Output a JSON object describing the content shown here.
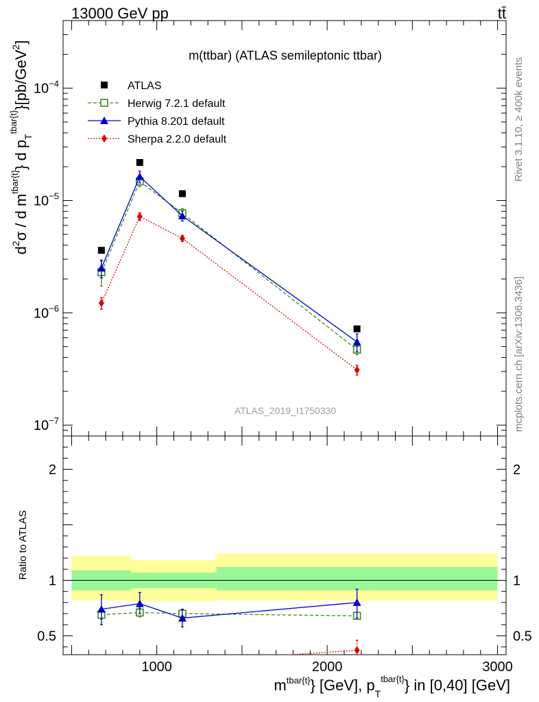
{
  "header": {
    "left": "13000 GeV pp",
    "right": "tt̄"
  },
  "side_labels": {
    "rivet": "Rivet 3.1.10, ≥ 400k events",
    "mcplots": "mcplots.cern.ch [arXiv:1306.3436]"
  },
  "chart_data": [
    {
      "type": "scatter",
      "title": "m(ttbar) (ATLAS semileptonic ttbar)",
      "watermark": "ATLAS_2019_I1750330",
      "ylabel": {
        "parts": [
          "d",
          "2",
          "σ / d m",
          "tbar{t}",
          "} d p",
          "T",
          "tbar{t}",
          "}[pb/GeV",
          "2",
          "]"
        ]
      },
      "y_scale": "log",
      "ylim": [
        8e-08,
        0.0004
      ],
      "xlim": [
        450,
        3050
      ],
      "y_ticks": [
        {
          "value": 1e-07,
          "mantissa": "10",
          "exp": "−7"
        },
        {
          "value": 1e-06,
          "mantissa": "10",
          "exp": "−6"
        },
        {
          "value": 1e-05,
          "mantissa": "10",
          "exp": "−5"
        },
        {
          "value": 0.0001,
          "mantissa": "10",
          "exp": "−4"
        }
      ],
      "legend_position": "top-left",
      "series": [
        {
          "name": "ATLAS",
          "color": "#000000",
          "marker": "square-filled",
          "line": "none",
          "x": [
            675,
            900,
            1150,
            2175
          ],
          "y": [
            3.6e-06,
            2.18e-05,
            1.15e-05,
            7.2e-07
          ]
        },
        {
          "name": "Herwig 7.2.1 default",
          "color": "#3a8a12",
          "marker": "square-open",
          "line": "dashed",
          "x": [
            675,
            900,
            1150,
            2175
          ],
          "y": [
            2.3e-06,
            1.48e-05,
            7.7e-06,
            4.7e-07
          ],
          "yerr": [
            0.25,
            0.1,
            0.1,
            0.1
          ]
        },
        {
          "name": "Pythia 8.201 default",
          "color": "#0000cc",
          "marker": "triangle-filled",
          "line": "solid",
          "x": [
            675,
            900,
            1150,
            2175
          ],
          "y": [
            2.5e-06,
            1.63e-05,
            7.3e-06,
            5.5e-07
          ],
          "yerr": [
            0.18,
            0.12,
            0.1,
            0.18
          ]
        },
        {
          "name": "Sherpa 2.2.0 default",
          "color": "#e00000",
          "marker": "diamond-filled",
          "line": "dotted",
          "x": [
            675,
            900,
            1150,
            2175
          ],
          "y": [
            1.22e-06,
            7.2e-06,
            4.6e-06,
            3.1e-07
          ],
          "yerr": [
            0.12,
            0.08,
            0.06,
            0.1
          ]
        }
      ]
    },
    {
      "type": "scatter",
      "ylabel": "Ratio to ATLAS",
      "xlabel": {
        "parts": [
          "m",
          "tbar{t}",
          "} [GeV], p",
          "T",
          "tbar{t}",
          "} in [0,40] [GeV]"
        ]
      },
      "xlim": [
        450,
        3050
      ],
      "ylim": [
        0.33,
        2.3
      ],
      "x_ticks": [
        {
          "value": 1000,
          "label": "1000"
        },
        {
          "value": 2000,
          "label": "2000"
        },
        {
          "value": 3000,
          "label": "3000"
        }
      ],
      "y_ticks": [
        {
          "value": 0.5,
          "label": "0.5"
        },
        {
          "value": 1,
          "label": "1"
        },
        {
          "value": 2,
          "label": "2"
        }
      ],
      "bands": [
        {
          "x": [
            500,
            850
          ],
          "outer": [
            0.82,
            1.22
          ],
          "inner": [
            0.91,
            1.09
          ]
        },
        {
          "x": [
            850,
            1350
          ],
          "outer": [
            0.81,
            1.18
          ],
          "inner": [
            0.93,
            1.07
          ]
        },
        {
          "x": [
            1350,
            3000
          ],
          "outer": [
            0.82,
            1.24
          ],
          "inner": [
            0.91,
            1.12
          ]
        }
      ],
      "series": [
        {
          "name": "Herwig 7.2.1 default",
          "color": "#3a8a12",
          "marker": "square-open",
          "line": "dashed",
          "x": [
            675,
            900,
            1150,
            2175
          ],
          "y": [
            0.69,
            0.71,
            0.7,
            0.68
          ],
          "ylo": [
            0.65,
            0.67,
            0.66,
            0.66
          ],
          "yhi": [
            0.73,
            0.75,
            0.74,
            0.71
          ]
        },
        {
          "name": "Pythia 8.201 default",
          "color": "#0000cc",
          "marker": "triangle-filled",
          "line": "solid",
          "x": [
            675,
            900,
            1150,
            2175
          ],
          "y": [
            0.74,
            0.79,
            0.66,
            0.8
          ],
          "ylo": [
            0.6,
            0.7,
            0.58,
            0.66
          ],
          "yhi": [
            0.87,
            0.89,
            0.74,
            0.92
          ]
        },
        {
          "name": "Sherpa 2.2.0 default",
          "color": "#e00000",
          "marker": "diamond-filled",
          "line": "dotted",
          "x": [
            1500,
            2175
          ],
          "y": [
            0.3,
            0.37
          ],
          "ylo": [
            0.28,
            0.33
          ],
          "yhi": [
            0.32,
            0.46
          ]
        }
      ]
    }
  ]
}
